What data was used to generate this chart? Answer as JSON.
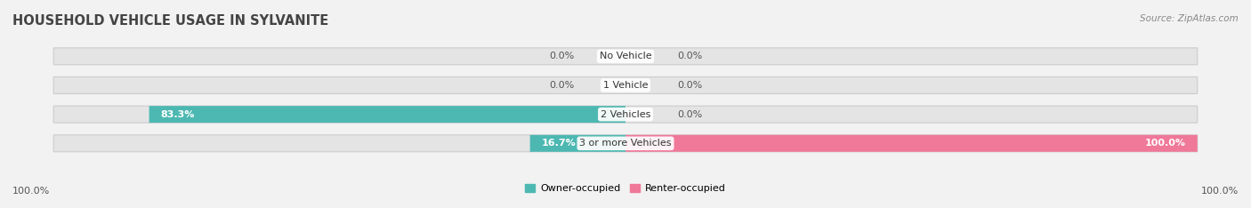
{
  "title": "HOUSEHOLD VEHICLE USAGE IN SYLVANITE",
  "source": "Source: ZipAtlas.com",
  "categories": [
    "No Vehicle",
    "1 Vehicle",
    "2 Vehicles",
    "3 or more Vehicles"
  ],
  "owner_values": [
    0.0,
    0.0,
    83.3,
    16.7
  ],
  "renter_values": [
    0.0,
    0.0,
    0.0,
    100.0
  ],
  "owner_color": "#4db8b2",
  "renter_color": "#f07898",
  "bar_bg_color": "#e4e4e4",
  "bar_bg_shadow": "#d0d0d0",
  "owner_label": "Owner-occupied",
  "renter_label": "Renter-occupied",
  "axis_left_label": "100.0%",
  "axis_right_label": "100.0%",
  "max_val": 100.0,
  "bar_height": 0.58,
  "stub_size": 8.0,
  "background_color": "#f2f2f2",
  "title_fontsize": 10.5,
  "source_fontsize": 7.5,
  "label_fontsize": 8,
  "cat_fontsize": 8,
  "tick_fontsize": 8,
  "value_color_outside": "#555555",
  "value_color_inside": "#ffffff"
}
